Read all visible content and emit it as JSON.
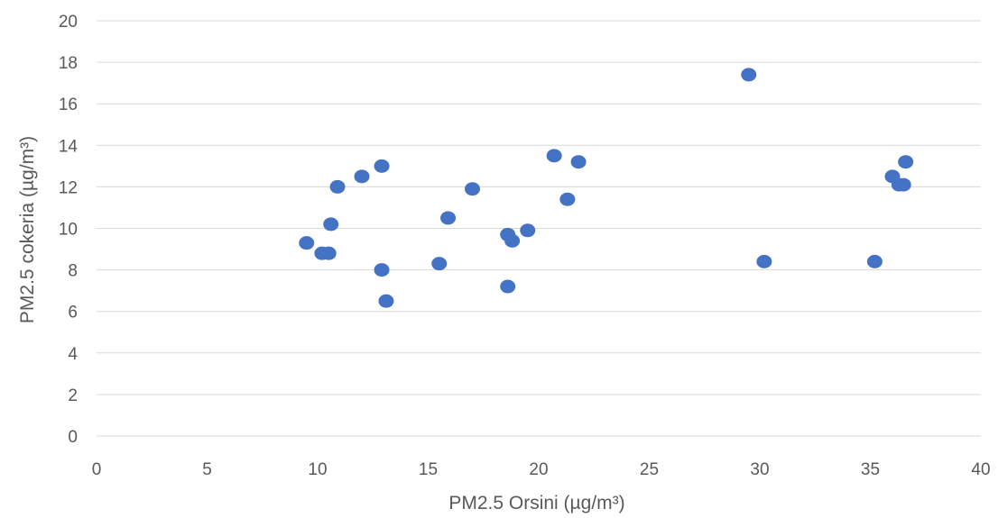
{
  "chart_data": {
    "type": "scatter",
    "title": "",
    "xlabel": "PM2.5 Orsini (µg/m³)",
    "ylabel": "PM2.5 cokeria (µg/m³)",
    "xlim": [
      0,
      40
    ],
    "ylim": [
      0,
      20
    ],
    "xticks": [
      "0",
      "5",
      "10",
      "15",
      "20",
      "25",
      "30",
      "35",
      "40"
    ],
    "yticks": [
      "0",
      "2",
      "4",
      "6",
      "8",
      "10",
      "12",
      "14",
      "16",
      "18",
      "20"
    ],
    "grid": "horizontal",
    "legend": "none",
    "color": "#4472c4",
    "points": [
      {
        "x": 9.5,
        "y": 9.3
      },
      {
        "x": 10.2,
        "y": 8.8
      },
      {
        "x": 10.5,
        "y": 8.8
      },
      {
        "x": 10.6,
        "y": 10.2
      },
      {
        "x": 10.9,
        "y": 12.0
      },
      {
        "x": 12.0,
        "y": 12.5
      },
      {
        "x": 12.9,
        "y": 13.0
      },
      {
        "x": 12.9,
        "y": 8.0
      },
      {
        "x": 13.1,
        "y": 6.5
      },
      {
        "x": 15.5,
        "y": 8.3
      },
      {
        "x": 15.9,
        "y": 10.5
      },
      {
        "x": 17.0,
        "y": 11.9
      },
      {
        "x": 18.6,
        "y": 9.7
      },
      {
        "x": 18.8,
        "y": 9.4
      },
      {
        "x": 18.6,
        "y": 7.2
      },
      {
        "x": 19.5,
        "y": 9.9
      },
      {
        "x": 20.7,
        "y": 13.5
      },
      {
        "x": 21.3,
        "y": 11.4
      },
      {
        "x": 21.8,
        "y": 13.2
      },
      {
        "x": 29.5,
        "y": 17.4
      },
      {
        "x": 30.2,
        "y": 8.4
      },
      {
        "x": 35.2,
        "y": 8.4
      },
      {
        "x": 36.0,
        "y": 12.5
      },
      {
        "x": 36.3,
        "y": 12.1
      },
      {
        "x": 36.5,
        "y": 12.1
      },
      {
        "x": 36.6,
        "y": 13.2
      }
    ]
  }
}
